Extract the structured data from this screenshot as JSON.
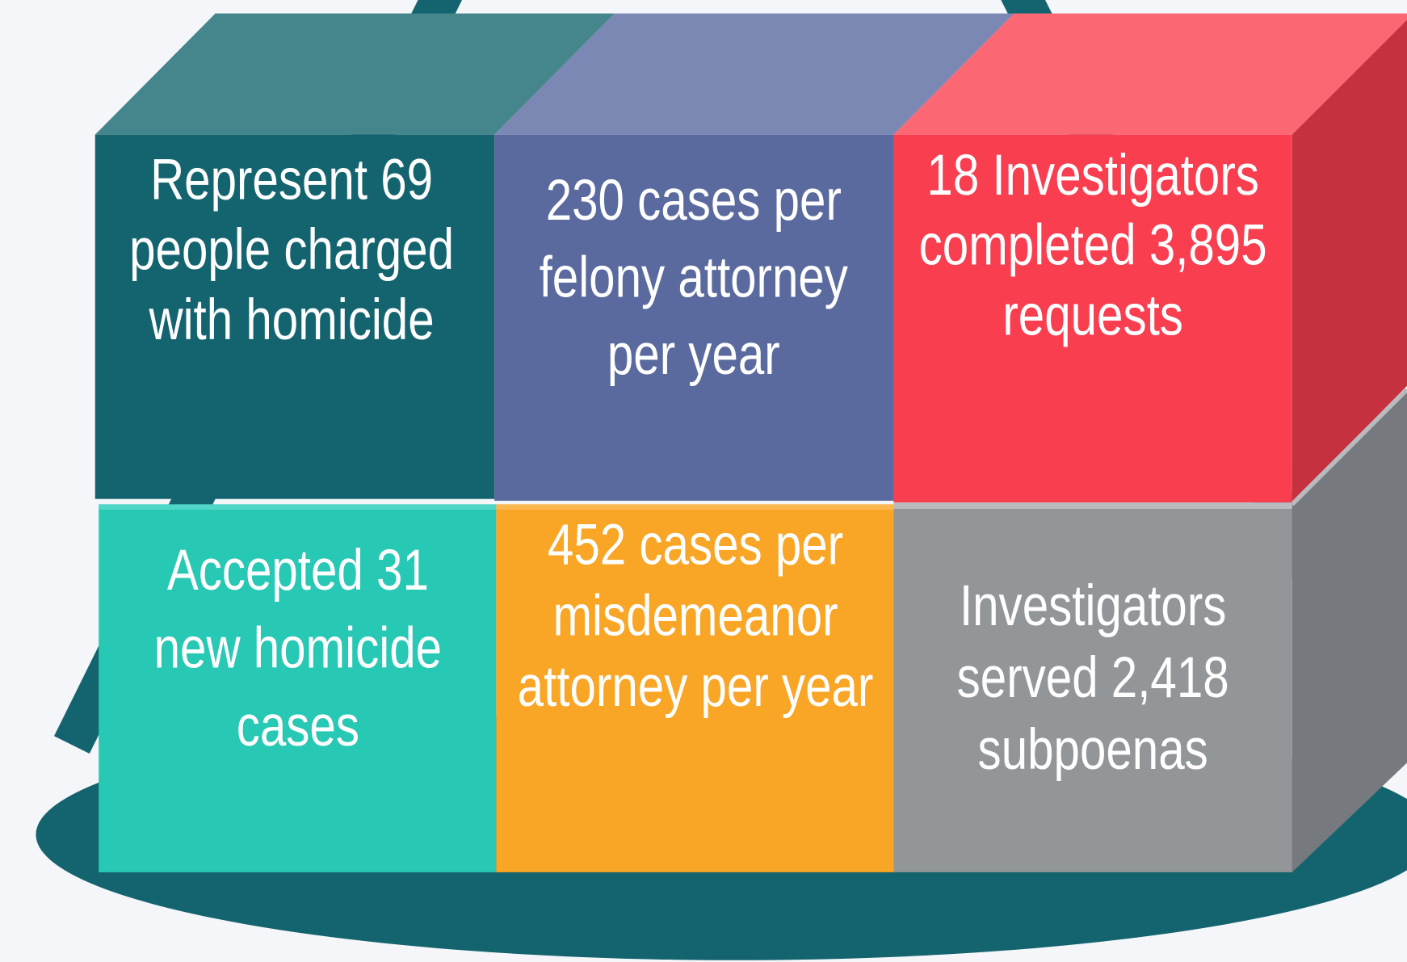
{
  "cells": [
    {
      "lines": [
        "Represent 69",
        "people charged",
        "with homicide"
      ]
    },
    {
      "lines": [
        "230 cases per",
        "felony attorney",
        "per year"
      ]
    },
    {
      "lines": [
        "18 Investigators",
        "completed 3,895",
        "requests"
      ]
    },
    {
      "lines": [
        "Accepted 31",
        "new homicide",
        "cases"
      ]
    },
    {
      "lines": [
        "452 cases per",
        "misdemeanor",
        "attorney per year"
      ]
    },
    {
      "lines": [
        "Investigators",
        "served 2,418",
        "subpoenas"
      ]
    }
  ]
}
